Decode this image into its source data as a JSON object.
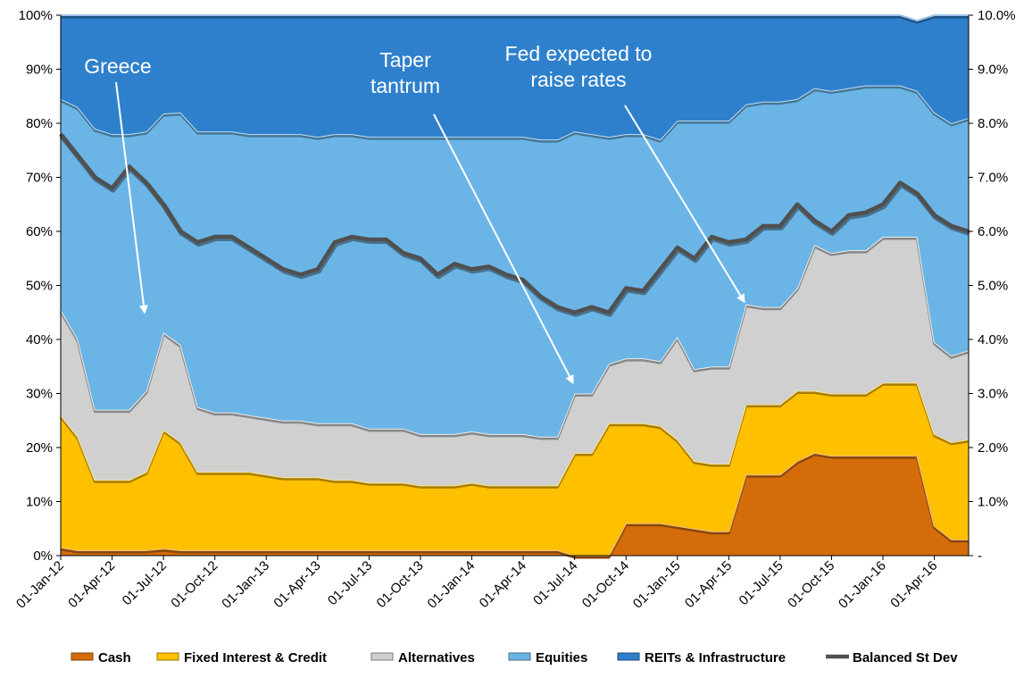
{
  "chart_data": {
    "type": "area",
    "stacked": true,
    "x": [
      "01-Jan-12",
      "01-Feb-12",
      "01-Mar-12",
      "01-Apr-12",
      "01-May-12",
      "01-Jun-12",
      "01-Jul-12",
      "01-Aug-12",
      "01-Sep-12",
      "01-Oct-12",
      "01-Nov-12",
      "01-Dec-12",
      "01-Jan-13",
      "01-Feb-13",
      "01-Mar-13",
      "01-Apr-13",
      "01-May-13",
      "01-Jun-13",
      "01-Jul-13",
      "01-Aug-13",
      "01-Sep-13",
      "01-Oct-13",
      "01-Nov-13",
      "01-Dec-13",
      "01-Jan-14",
      "01-Feb-14",
      "01-Mar-14",
      "01-Apr-14",
      "01-May-14",
      "01-Jun-14",
      "01-Jul-14",
      "01-Aug-14",
      "01-Sep-14",
      "01-Oct-14",
      "01-Nov-14",
      "01-Dec-14",
      "01-Jan-15",
      "01-Feb-15",
      "01-Mar-15",
      "01-Apr-15",
      "01-May-15",
      "01-Jun-15",
      "01-Jul-15",
      "01-Aug-15",
      "01-Sep-15",
      "01-Oct-15",
      "01-Nov-15",
      "01-Dec-15",
      "01-Jan-16",
      "01-Feb-16",
      "01-Mar-16",
      "01-Apr-16",
      "01-May-16",
      "01-Jun-16"
    ],
    "x_tick_labels": [
      "01-Jan-12",
      "01-Apr-12",
      "01-Jul-12",
      "01-Oct-12",
      "01-Jan-13",
      "01-Apr-13",
      "01-Jul-13",
      "01-Oct-13",
      "01-Jan-14",
      "01-Apr-14",
      "01-Jul-14",
      "01-Oct-14",
      "01-Jan-15",
      "01-Apr-15",
      "01-Jul-15",
      "01-Oct-15",
      "01-Jan-16",
      "01-Apr-16"
    ],
    "series": [
      {
        "name": "Cash",
        "color": "#D46C0A",
        "values": [
          1.5,
          1,
          1,
          1,
          1,
          1,
          1.3,
          1,
          1,
          1,
          1,
          1,
          1,
          1,
          1,
          1,
          1,
          1,
          1,
          1,
          1,
          1,
          1,
          1,
          1,
          1,
          1,
          1,
          1,
          1,
          0,
          0,
          0,
          6,
          6,
          6,
          5.5,
          5,
          4.5,
          4.5,
          15,
          15,
          15,
          17.5,
          19,
          18.5,
          18.5,
          18.5,
          18.5,
          18.5,
          18.5,
          5.5,
          3,
          3
        ]
      },
      {
        "name": "Fixed Interest & Credit",
        "color": "#FFC000",
        "values": [
          24.5,
          21,
          13,
          13,
          13,
          14.5,
          22,
          20,
          14.5,
          14.5,
          14.5,
          14.5,
          14,
          13.5,
          13.5,
          13.5,
          13,
          13,
          12.5,
          12.5,
          12.5,
          12,
          12,
          12,
          12.5,
          12,
          12,
          12,
          12,
          12,
          19,
          19,
          24.5,
          18.5,
          18.5,
          18,
          16,
          12.5,
          12.5,
          12.5,
          13,
          13,
          13,
          13,
          11.5,
          11.5,
          11.5,
          11.5,
          13.5,
          13.5,
          13.5,
          17,
          18,
          18.5
        ]
      },
      {
        "name": "Alternatives",
        "color": "#D0D0D0",
        "values": [
          19.5,
          18,
          13,
          13,
          13,
          15,
          18,
          18,
          12,
          11,
          11,
          10.5,
          10.5,
          10.5,
          10.5,
          10,
          10.5,
          10.5,
          10,
          10,
          10,
          9.5,
          9.5,
          9.5,
          9.5,
          9.5,
          9.5,
          9.5,
          9,
          9,
          11,
          11,
          11,
          12,
          12,
          12,
          19,
          17,
          18,
          18,
          18.5,
          18,
          18,
          19,
          27,
          26,
          26.5,
          26.5,
          27,
          27,
          27,
          17,
          16,
          16.5
        ]
      },
      {
        "name": "Equities",
        "color": "#6BB5E6",
        "values": [
          39,
          43,
          52,
          51,
          51,
          48,
          40.5,
          43,
          51,
          52,
          52,
          52,
          52.5,
          53,
          53,
          53,
          53.5,
          53.5,
          54,
          54,
          54,
          55,
          55,
          55,
          54.5,
          55,
          55,
          55,
          55,
          55,
          48.5,
          48,
          42,
          41.5,
          41.5,
          41,
          40,
          46,
          45.5,
          45.5,
          37,
          38,
          38,
          35,
          29,
          30,
          30,
          30.5,
          28,
          28,
          27,
          42.5,
          43,
          43
        ]
      },
      {
        "name": "REITs & Infrastructure",
        "color": "#2E80CC",
        "values": [
          15.5,
          17,
          21,
          22,
          22,
          21.5,
          18.2,
          18,
          21.5,
          21.5,
          21.5,
          22,
          22,
          22,
          22,
          22.5,
          22,
          22,
          22.5,
          22.5,
          22.5,
          22.5,
          22.5,
          22.5,
          22.5,
          22.5,
          22.5,
          22.5,
          23,
          23,
          21.5,
          22,
          22.5,
          22,
          22,
          23,
          19.5,
          19.5,
          19.5,
          19.5,
          16.5,
          16,
          16,
          15.5,
          13.5,
          14,
          13.5,
          13,
          13,
          13,
          13,
          18,
          20,
          19
        ]
      }
    ],
    "line_series": {
      "name": "Balanced St Dev",
      "color": "#505050",
      "axis": "right",
      "values": [
        7.8,
        7.4,
        7.0,
        6.8,
        7.2,
        6.9,
        6.5,
        6.0,
        5.8,
        5.9,
        5.9,
        5.7,
        5.5,
        5.3,
        5.2,
        5.3,
        5.8,
        5.9,
        5.85,
        5.85,
        5.6,
        5.5,
        5.2,
        5.4,
        5.3,
        5.35,
        5.2,
        5.1,
        4.8,
        4.6,
        4.5,
        4.6,
        4.5,
        4.95,
        4.9,
        5.3,
        5.7,
        5.5,
        5.9,
        5.8,
        5.85,
        6.1,
        6.1,
        6.5,
        6.2,
        6.0,
        6.3,
        6.35,
        6.5,
        6.9,
        6.7,
        6.3,
        6.1,
        6.0
      ]
    },
    "y_left": {
      "min": 0,
      "max": 100,
      "ticks": [
        "0%",
        "10%",
        "20%",
        "30%",
        "40%",
        "50%",
        "60%",
        "70%",
        "80%",
        "90%",
        "100%"
      ]
    },
    "y_right": {
      "min": 0,
      "max": 10,
      "ticks": [
        "-",
        "1.0%",
        "2.0%",
        "3.0%",
        "4.0%",
        "5.0%",
        "6.0%",
        "7.0%",
        "8.0%",
        "9.0%",
        "10.0%"
      ]
    },
    "grid": false,
    "legend_position": "bottom",
    "annotations": [
      {
        "lines": [
          "Greece"
        ],
        "target_x": "01-Jun-12",
        "target_y": 44
      },
      {
        "lines": [
          "Taper",
          "tantrum"
        ],
        "target_x": "01-Jul-14",
        "target_y": 31
      },
      {
        "lines": [
          "Fed expected to",
          "raise rates"
        ],
        "target_x": "01-May-15",
        "target_y": 46
      }
    ]
  }
}
